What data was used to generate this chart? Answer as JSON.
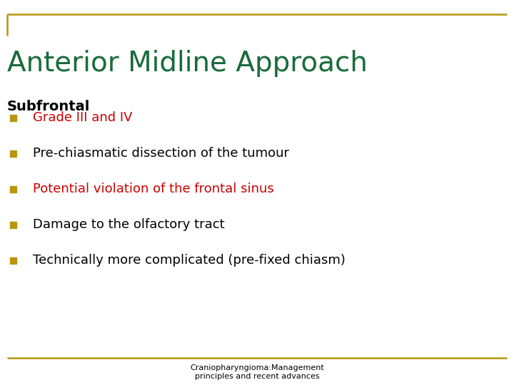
{
  "title": "Anterior Midline Approach",
  "title_color": "#1a6b3c",
  "title_fontsize": 28,
  "title_fontweight": "normal",
  "background_color": "#ffffff",
  "border_color": "#b8960c",
  "section_header": "Subfrontal",
  "section_header_color": "#000000",
  "section_header_fontsize": 14,
  "bullet_color": "#b8960c",
  "bullets": [
    {
      "text": "Grade III and IV",
      "color": "#cc0000"
    },
    {
      "text": "Pre-chiasmatic dissection of the tumour",
      "color": "#000000"
    },
    {
      "text": "Potential violation of the frontal sinus",
      "color": "#cc0000"
    },
    {
      "text": "Damage to the olfactory tract",
      "color": "#000000"
    },
    {
      "text": "Technically more complicated (pre-fixed chiasm)",
      "color": "#000000"
    }
  ],
  "bullet_fontsize": 13,
  "footer_text": "Craniopharyngioma:Management\nprinciples and recent advances",
  "footer_color": "#000000",
  "footer_fontsize": 8
}
